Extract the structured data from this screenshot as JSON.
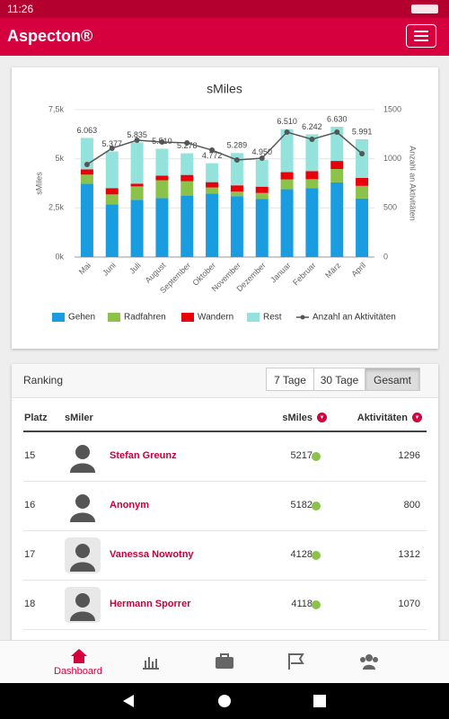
{
  "status_bar": {
    "time": "11:26"
  },
  "header": {
    "title": "Aspecton®"
  },
  "chart_data": {
    "type": "bar",
    "stacked": true,
    "title": "sMiles",
    "y_label": "sMiles",
    "y2_label": "Anzahl an Aktivitäten",
    "categories": [
      "Mai",
      "Juni",
      "Juli",
      "August",
      "September",
      "Oktober",
      "November",
      "Dezember",
      "Januar",
      "Februar",
      "März",
      "April"
    ],
    "series": [
      {
        "name": "Gehen",
        "color": "#1a9de0",
        "values": [
          3733,
          2687,
          2915,
          3000,
          3128,
          3222,
          3099,
          2950,
          3450,
          3502,
          3800,
          2981
        ]
      },
      {
        "name": "Radfahren",
        "color": "#8bc34a",
        "values": [
          460,
          500,
          680,
          910,
          730,
          320,
          230,
          310,
          500,
          460,
          680,
          640
        ]
      },
      {
        "name": "Wandern",
        "color": "#e8000b",
        "values": [
          270,
          320,
          140,
          230,
          320,
          270,
          320,
          320,
          370,
          410,
          410,
          410
        ]
      },
      {
        "name": "Rest",
        "color": "#94e2dc",
        "values": [
          1600,
          1870,
          2100,
          1370,
          1100,
          960,
          1640,
          1370,
          2190,
          1870,
          1740,
          1960
        ]
      },
      {
        "name": "Anzahl an Aktivitäten",
        "type": "line",
        "axis": "y2",
        "color": "#555555",
        "values": [
          942,
          1107,
          1189,
          1171,
          1162,
          1088,
          988,
          1006,
          1271,
          1198,
          1271,
          1052
        ]
      }
    ],
    "totals": [
      6063,
      5377,
      5835,
      5510,
      5278,
      4772,
      5289,
      4950,
      6510,
      6242,
      6630,
      5991
    ],
    "value_labels": [
      "6.063",
      "5.377",
      "5.835",
      "5.510",
      "5.278",
      "4.772",
      "5.289",
      "4.950",
      "6.510",
      "6.242",
      "6.630",
      "5.991"
    ],
    "ylim": [
      0,
      7500
    ],
    "yticks": [
      {
        "value": 0,
        "label": "0k"
      },
      {
        "value": 2500,
        "label": "2,5k"
      },
      {
        "value": 5000,
        "label": "5k"
      },
      {
        "value": 7500,
        "label": "7,5k"
      }
    ],
    "y2lim": [
      0,
      1500
    ],
    "y2ticks": [
      0,
      500,
      1000,
      1500
    ],
    "grid": true,
    "legend": "bottom"
  },
  "ranking": {
    "title": "Ranking",
    "filters": [
      "7 Tage",
      "30 Tage",
      "Gesamt"
    ],
    "active_filter": 2,
    "columns": [
      "Platz",
      "sMiler",
      "sMiles",
      "Aktivitäten"
    ],
    "rows": [
      [
        15,
        "Stefan Greunz",
        5217,
        1296
      ],
      [
        16,
        "Anonym",
        5182,
        800
      ],
      [
        17,
        "Vanessa Nowotny",
        4128,
        1312
      ],
      [
        18,
        "Hermann Sporrer",
        4118,
        1070
      ]
    ]
  },
  "nav": {
    "active": "Dashboard"
  }
}
